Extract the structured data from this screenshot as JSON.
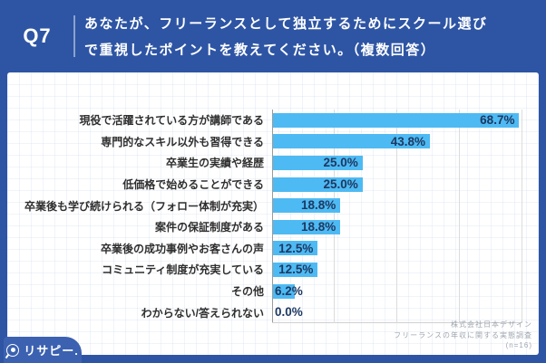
{
  "header": {
    "question_number": "Q7",
    "question_line1": "あなたが、フリーランスとして独立するためにスクール選び",
    "question_line2": "で重視したポイントを教えてください。（複数回答）",
    "background_color": "#2e55a4",
    "text_color": "#ffffff"
  },
  "chart_data": {
    "type": "bar",
    "orientation": "horizontal",
    "title": "あなたが、フリーランスとして独立するためにスクール選びで重視したポイントを教えてください。（複数回答）",
    "categories": [
      "現役で活躍されている方が講師である",
      "専門的なスキル以外も習得できる",
      "卒業生の実績や経歴",
      "低価格で始めることができる",
      "卒業後も学び続けられる（フォロー体制が充実）",
      "案件の保証制度がある",
      "卒業後の成功事例やお客さんの声",
      "コミュニティ制度が充実している",
      "その他",
      "わからない/答えられない"
    ],
    "values": [
      68.7,
      43.8,
      25.0,
      25.0,
      18.8,
      18.8,
      12.5,
      12.5,
      6.2,
      0.0
    ],
    "value_labels": [
      "68.7%",
      "43.8%",
      "25.0%",
      "25.0%",
      "18.8%",
      "18.8%",
      "12.5%",
      "12.5%",
      "6.2%",
      "0.0%"
    ],
    "n": 16,
    "xlim": [
      0,
      69.6
    ],
    "gridlines_value_units": [
      17.4,
      34.8,
      52.2,
      69.6
    ],
    "grid": true,
    "legend": false,
    "bar_color": "#4ebaf3",
    "value_label_color": "#1d3962",
    "category_label_color": "#2f2f2f"
  },
  "source": {
    "company": "株式会社日本デザイン",
    "survey": "フリーランスの年収に関する実態調査",
    "sample": "(n=16)"
  },
  "logo": {
    "text": "リサピー.",
    "icon": "pin-circle-icon"
  }
}
